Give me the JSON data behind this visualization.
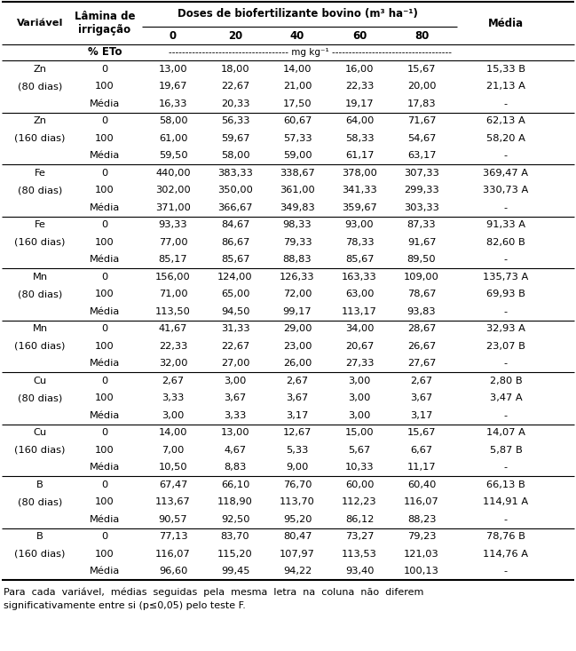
{
  "col_headers": [
    "Variável",
    "Lâmina de\nirrigação",
    "0",
    "20",
    "40",
    "60",
    "80",
    "Média"
  ],
  "doses_header": "Doses de biofertilizante bovino (m³ ha⁻¹)",
  "unit_label": "% ETo",
  "unit_dashes": "------------------------------------ mg kg⁻¹ ------------------------------------",
  "footnote1": "Para  cada  variável,  médias  seguidas  pela  mesma  letra  na  coluna  não  diferem",
  "footnote2": "significativamente entre si (p≤0,05) pelo teste F.",
  "groups": [
    {
      "var_line1": "Zn",
      "var_line2": "(80 dias)",
      "rows": [
        [
          "0",
          "13,00",
          "18,00",
          "14,00",
          "16,00",
          "15,67",
          "15,33 B"
        ],
        [
          "100",
          "19,67",
          "22,67",
          "21,00",
          "22,33",
          "20,00",
          "21,13 A"
        ],
        [
          "Média",
          "16,33",
          "20,33",
          "17,50",
          "19,17",
          "17,83",
          "-"
        ]
      ]
    },
    {
      "var_line1": "Zn",
      "var_line2": "(160 dias)",
      "rows": [
        [
          "0",
          "58,00",
          "56,33",
          "60,67",
          "64,00",
          "71,67",
          "62,13 A"
        ],
        [
          "100",
          "61,00",
          "59,67",
          "57,33",
          "58,33",
          "54,67",
          "58,20 A"
        ],
        [
          "Média",
          "59,50",
          "58,00",
          "59,00",
          "61,17",
          "63,17",
          "-"
        ]
      ]
    },
    {
      "var_line1": "Fe",
      "var_line2": "(80 dias)",
      "rows": [
        [
          "0",
          "440,00",
          "383,33",
          "338,67",
          "378,00",
          "307,33",
          "369,47 A"
        ],
        [
          "100",
          "302,00",
          "350,00",
          "361,00",
          "341,33",
          "299,33",
          "330,73 A"
        ],
        [
          "Média",
          "371,00",
          "366,67",
          "349,83",
          "359,67",
          "303,33",
          "-"
        ]
      ]
    },
    {
      "var_line1": "Fe",
      "var_line2": "(160 dias)",
      "rows": [
        [
          "0",
          "93,33",
          "84,67",
          "98,33",
          "93,00",
          "87,33",
          "91,33 A"
        ],
        [
          "100",
          "77,00",
          "86,67",
          "79,33",
          "78,33",
          "91,67",
          "82,60 B"
        ],
        [
          "Média",
          "85,17",
          "85,67",
          "88,83",
          "85,67",
          "89,50",
          "-"
        ]
      ]
    },
    {
      "var_line1": "Mn",
      "var_line2": "(80 dias)",
      "rows": [
        [
          "0",
          "156,00",
          "124,00",
          "126,33",
          "163,33",
          "109,00",
          "135,73 A"
        ],
        [
          "100",
          "71,00",
          "65,00",
          "72,00",
          "63,00",
          "78,67",
          "69,93 B"
        ],
        [
          "Média",
          "113,50",
          "94,50",
          "99,17",
          "113,17",
          "93,83",
          "-"
        ]
      ]
    },
    {
      "var_line1": "Mn",
      "var_line2": "(160 dias)",
      "rows": [
        [
          "0",
          "41,67",
          "31,33",
          "29,00",
          "34,00",
          "28,67",
          "32,93 A"
        ],
        [
          "100",
          "22,33",
          "22,67",
          "23,00",
          "20,67",
          "26,67",
          "23,07 B"
        ],
        [
          "Média",
          "32,00",
          "27,00",
          "26,00",
          "27,33",
          "27,67",
          "-"
        ]
      ]
    },
    {
      "var_line1": "Cu",
      "var_line2": "(80 dias)",
      "rows": [
        [
          "0",
          "2,67",
          "3,00",
          "2,67",
          "3,00",
          "2,67",
          "2,80 B"
        ],
        [
          "100",
          "3,33",
          "3,67",
          "3,67",
          "3,00",
          "3,67",
          "3,47 A"
        ],
        [
          "Média",
          "3,00",
          "3,33",
          "3,17",
          "3,00",
          "3,17",
          "-"
        ]
      ]
    },
    {
      "var_line1": "Cu",
      "var_line2": "(160 dias)",
      "rows": [
        [
          "0",
          "14,00",
          "13,00",
          "12,67",
          "15,00",
          "15,67",
          "14,07 A"
        ],
        [
          "100",
          "7,00",
          "4,67",
          "5,33",
          "5,67",
          "6,67",
          "5,87 B"
        ],
        [
          "Média",
          "10,50",
          "8,83",
          "9,00",
          "10,33",
          "11,17",
          "-"
        ]
      ]
    },
    {
      "var_line1": "B",
      "var_line2": "(80 dias)",
      "rows": [
        [
          "0",
          "67,47",
          "66,10",
          "76,70",
          "60,00",
          "60,40",
          "66,13 B"
        ],
        [
          "100",
          "113,67",
          "118,90",
          "113,70",
          "112,23",
          "116,07",
          "114,91 A"
        ],
        [
          "Média",
          "90,57",
          "92,50",
          "95,20",
          "86,12",
          "88,23",
          "-"
        ]
      ]
    },
    {
      "var_line1": "B",
      "var_line2": "(160 dias)",
      "rows": [
        [
          "0",
          "77,13",
          "83,70",
          "80,47",
          "73,27",
          "79,23",
          "78,76 B"
        ],
        [
          "100",
          "116,07",
          "115,20",
          "107,97",
          "113,53",
          "121,03",
          "114,76 A"
        ],
        [
          "Média",
          "96,60",
          "99,45",
          "94,22",
          "93,40",
          "100,13",
          "-"
        ]
      ]
    }
  ]
}
